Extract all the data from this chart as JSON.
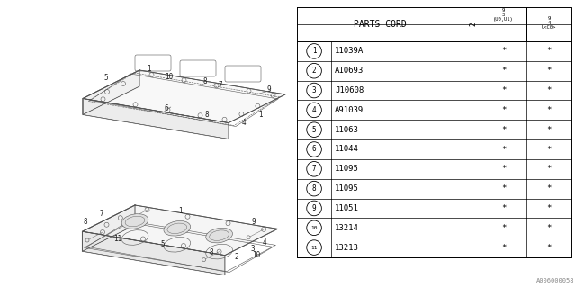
{
  "bg_color": "#ffffff",
  "parts_cord_header": "PARTS CORD",
  "col2_header_top": "9\n3\n(U0,U1)",
  "col2_header_bot": "9\n4\nU<C0>",
  "col1_rotated": "2",
  "rows": [
    {
      "num": "1",
      "code": "11039A",
      "c1": "*",
      "c2": "*"
    },
    {
      "num": "2",
      "code": "A10693",
      "c1": "*",
      "c2": "*"
    },
    {
      "num": "3",
      "code": "J10608",
      "c1": "*",
      "c2": "*"
    },
    {
      "num": "4",
      "code": "A91039",
      "c1": "*",
      "c2": "*"
    },
    {
      "num": "5",
      "code": "11063",
      "c1": "*",
      "c2": "*"
    },
    {
      "num": "6",
      "code": "11044",
      "c1": "*",
      "c2": "*"
    },
    {
      "num": "7",
      "code": "11095",
      "c1": "*",
      "c2": "*"
    },
    {
      "num": "8",
      "code": "11095",
      "c1": "*",
      "c2": "*"
    },
    {
      "num": "9",
      "code": "11051",
      "c1": "*",
      "c2": "*"
    },
    {
      "num": "10",
      "code": "13214",
      "c1": "*",
      "c2": "*"
    },
    {
      "num": "11",
      "code": "13213",
      "c1": "*",
      "c2": "*"
    }
  ],
  "footer_code": "A006000058",
  "line_color": "#000000",
  "text_color": "#000000"
}
